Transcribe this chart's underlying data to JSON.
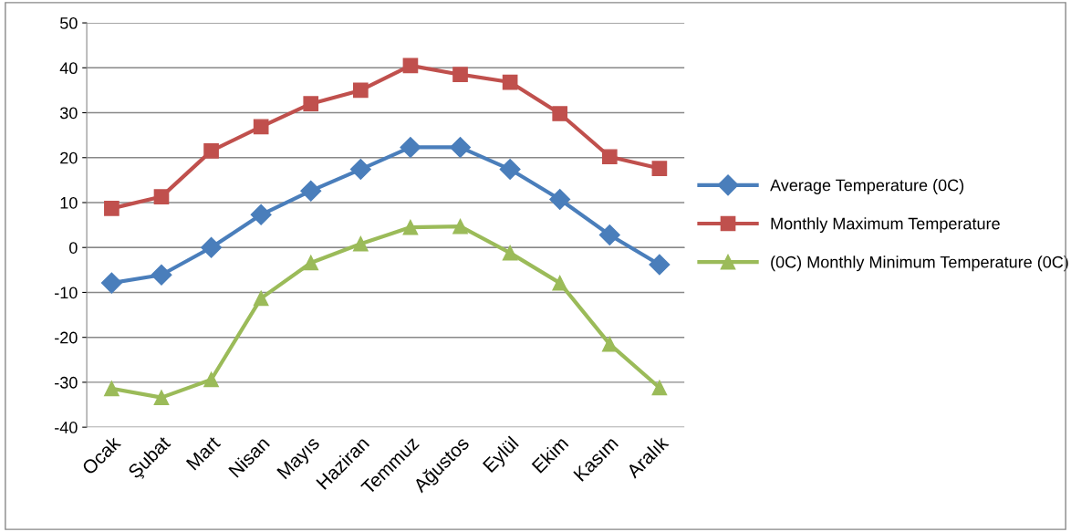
{
  "chart_data": {
    "type": "line",
    "categories": [
      "Ocak",
      "Şubat",
      "Mart",
      "Nisan",
      "Mayıs",
      "Haziran",
      "Temmuz",
      "Ağustos",
      "Eylül",
      "Ekim",
      "Kasım",
      "Aralık"
    ],
    "series": [
      {
        "name": "Average Temperature (0C)",
        "color": "#4a7ebb",
        "marker": "diamond",
        "values": [
          -7.9,
          -6.1,
          0,
          7.3,
          12.6,
          17.4,
          22.3,
          22.3,
          17.4,
          10.7,
          2.8,
          -3.8
        ]
      },
      {
        "name": "Monthly Maximum Temperature",
        "color": "#c0504d",
        "marker": "square",
        "values": [
          8.7,
          11.3,
          21.5,
          26.9,
          32,
          35,
          40.5,
          38.5,
          36.8,
          29.8,
          20.2,
          17.6
        ]
      },
      {
        "name": "(0C) Monthly Minimum Temperature (0C)",
        "color": "#9bbb59",
        "marker": "triangle",
        "values": [
          -31.4,
          -33.4,
          -29.4,
          -11.3,
          -3.4,
          0.8,
          4.5,
          4.7,
          -1.2,
          -7.9,
          -21.5,
          -31.2
        ]
      }
    ],
    "ylim": [
      -40,
      50
    ],
    "yticks": [
      -40,
      -30,
      -20,
      -10,
      0,
      10,
      20,
      30,
      40,
      50
    ],
    "grid": "y",
    "legend": "right"
  }
}
